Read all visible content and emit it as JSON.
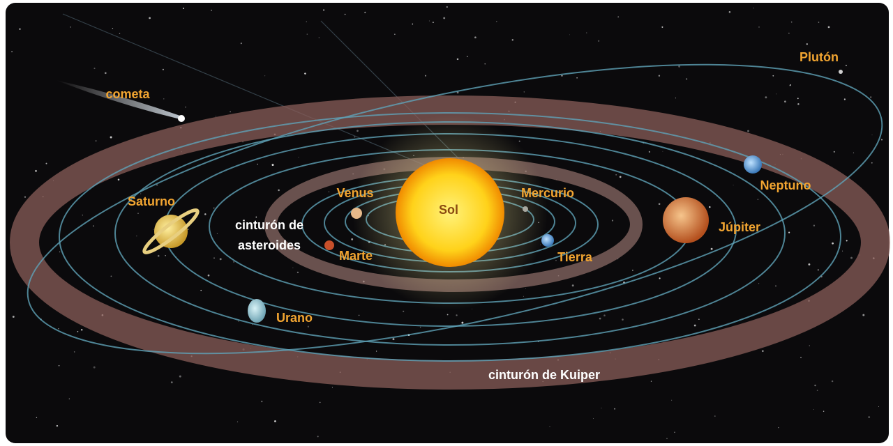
{
  "labels": {
    "cometa": "cometa",
    "pluton": "Plutón",
    "saturno": "Saturno",
    "asteroides": [
      "cinturón de",
      "asteroides"
    ],
    "venus": "Venus",
    "sol": "Sol",
    "mercurio": "Mercurio",
    "jupiter": "Júpiter",
    "neptuno": "Neptuno",
    "marte": "Marte",
    "tierra": "Tierra",
    "urano": "Urano",
    "kuiper": "cinturón de Kuiper"
  }
}
